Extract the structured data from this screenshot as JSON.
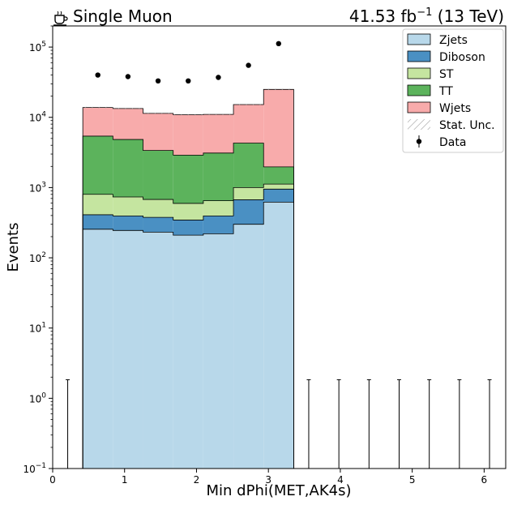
{
  "chart_data": {
    "type": "bar",
    "stacked": true,
    "title_left": "Single Muon",
    "title_left_icon": "coffee-icon",
    "title_right_prefix": "41.53 fb",
    "title_right_sup": "−1",
    "title_right_suffix": " (13 TeV)",
    "xlabel": "Min dPhi(MET,AK4s)",
    "ylabel": "Events",
    "xlim": [
      0,
      6.3
    ],
    "ylim": [
      0.1,
      200000
    ],
    "yscale": "log",
    "xticks": [
      "0",
      "1",
      "2",
      "3",
      "4",
      "5",
      "6"
    ],
    "xtick_values": [
      0,
      1,
      2,
      3,
      4,
      5,
      6
    ],
    "yticks": [
      {
        "base": "10",
        "exp": "−1",
        "value": 0.1
      },
      {
        "base": "10",
        "exp": "0",
        "value": 1
      },
      {
        "base": "10",
        "exp": "1",
        "value": 10
      },
      {
        "base": "10",
        "exp": "2",
        "value": 100
      },
      {
        "base": "10",
        "exp": "3",
        "value": 1000
      },
      {
        "base": "10",
        "exp": "4",
        "value": 10000
      },
      {
        "base": "10",
        "exp": "5",
        "value": 100000
      }
    ],
    "bin_edges": [
      0,
      0.419,
      0.838,
      1.257,
      1.676,
      2.095,
      2.514,
      2.933,
      3.352,
      3.771,
      4.19,
      4.609,
      5.028,
      5.447,
      5.866,
      6.285
    ],
    "series": [
      {
        "name": "Zjets",
        "color": "#b8d8ea",
        "values": [
          0,
          255,
          245,
          232,
          210,
          220,
          300,
          620,
          0,
          0,
          0,
          0,
          0,
          0,
          0
        ]
      },
      {
        "name": "Diboson",
        "color": "#4a90c3",
        "values": [
          0,
          155,
          150,
          145,
          135,
          175,
          370,
          330,
          0,
          0,
          0,
          0,
          0,
          0,
          0
        ]
      },
      {
        "name": "ST",
        "color": "#c5e5a0",
        "values": [
          0,
          390,
          340,
          300,
          250,
          255,
          330,
          170,
          0,
          0,
          0,
          0,
          0,
          0,
          0
        ]
      },
      {
        "name": "TT",
        "color": "#5cb35c",
        "values": [
          0,
          4600,
          4100,
          2700,
          2300,
          2450,
          3300,
          850,
          0,
          0,
          0,
          0,
          0,
          0,
          0
        ]
      },
      {
        "name": "Wjets",
        "color": "#f8abab",
        "values": [
          0,
          8400,
          8500,
          8000,
          8000,
          7900,
          10900,
          23000,
          0,
          0,
          0,
          0,
          0,
          0,
          0
        ]
      }
    ],
    "data_points": {
      "name": "Data",
      "x": [
        0.209,
        0.628,
        1.047,
        1.466,
        1.885,
        2.304,
        2.723,
        3.142,
        3.561,
        3.98,
        4.399,
        4.818,
        5.237,
        5.656,
        6.075
      ],
      "y": [
        0,
        40000,
        38000,
        33000,
        33000,
        37000,
        55000,
        112000,
        0,
        0,
        0,
        0,
        0,
        0,
        0
      ],
      "err_up": [
        1.84,
        0,
        0,
        0,
        0,
        0,
        0,
        0,
        1.84,
        1.84,
        1.84,
        1.84,
        1.84,
        1.84,
        1.84
      ]
    },
    "legend": {
      "placement": "top-right",
      "entries": [
        {
          "label": "Zjets",
          "kind": "fill",
          "color": "#b8d8ea"
        },
        {
          "label": "Diboson",
          "kind": "fill",
          "color": "#4a90c3"
        },
        {
          "label": "ST",
          "kind": "fill",
          "color": "#c5e5a0"
        },
        {
          "label": "TT",
          "kind": "fill",
          "color": "#5cb35c"
        },
        {
          "label": "Wjets",
          "kind": "fill",
          "color": "#f8abab"
        },
        {
          "label": "Stat. Unc.",
          "kind": "hatch",
          "color": "#999999"
        },
        {
          "label": "Data",
          "kind": "marker",
          "color": "#000000"
        }
      ]
    },
    "grid": false
  }
}
